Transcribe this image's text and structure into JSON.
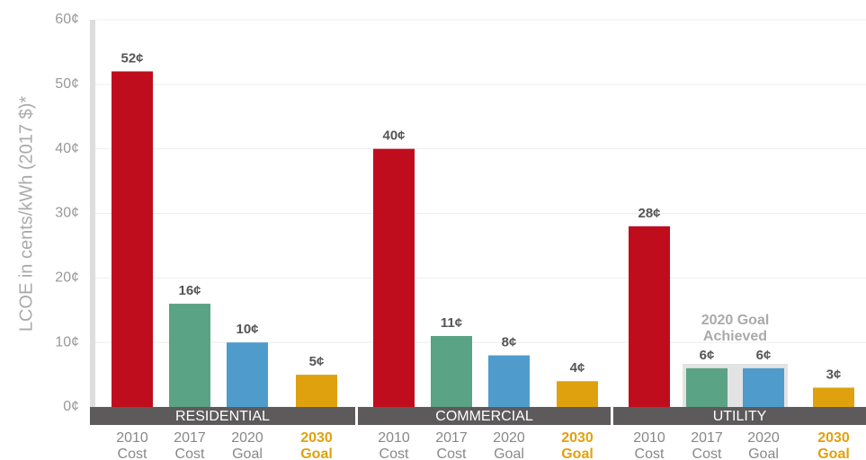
{
  "chart_data": {
    "type": "grouped_bar",
    "y_label": "LCOE in cents/kWh (2017 $)*",
    "groups": [
      "RESIDENTIAL",
      "COMMERCIAL",
      "UTILITY"
    ],
    "categories": [
      [
        "2010",
        "Cost"
      ],
      [
        "2017",
        "Cost"
      ],
      [
        "2020",
        "Goal"
      ],
      [
        "2030",
        "Goal"
      ]
    ],
    "colors": [
      "#c00d1e",
      "#5aa384",
      "#4f9ccc",
      "#e0a10f"
    ],
    "highlight_category": 3,
    "values": [
      [
        52,
        16,
        10,
        5
      ],
      [
        40,
        11,
        8,
        4
      ],
      [
        28,
        6,
        6,
        3
      ]
    ],
    "value_labels": [
      [
        "52¢",
        "16¢",
        "10¢",
        "5¢"
      ],
      [
        "40¢",
        "11¢",
        "8¢",
        "4¢"
      ],
      [
        "28¢",
        "6¢",
        "6¢",
        "3¢"
      ]
    ],
    "annotation": {
      "text": [
        "2020 Goal",
        "Achieved"
      ],
      "group": 2,
      "categories": [
        1,
        2
      ]
    },
    "ylim": [
      0,
      60
    ],
    "yticks": [
      {
        "value": 0,
        "label": "0¢"
      },
      {
        "value": 10,
        "label": "10¢"
      },
      {
        "value": 20,
        "label": "20¢"
      },
      {
        "value": 30,
        "label": "30¢"
      },
      {
        "value": 40,
        "label": "40¢"
      },
      {
        "value": 50,
        "label": "50¢"
      },
      {
        "value": 60,
        "label": "60¢"
      }
    ],
    "grid": true
  }
}
